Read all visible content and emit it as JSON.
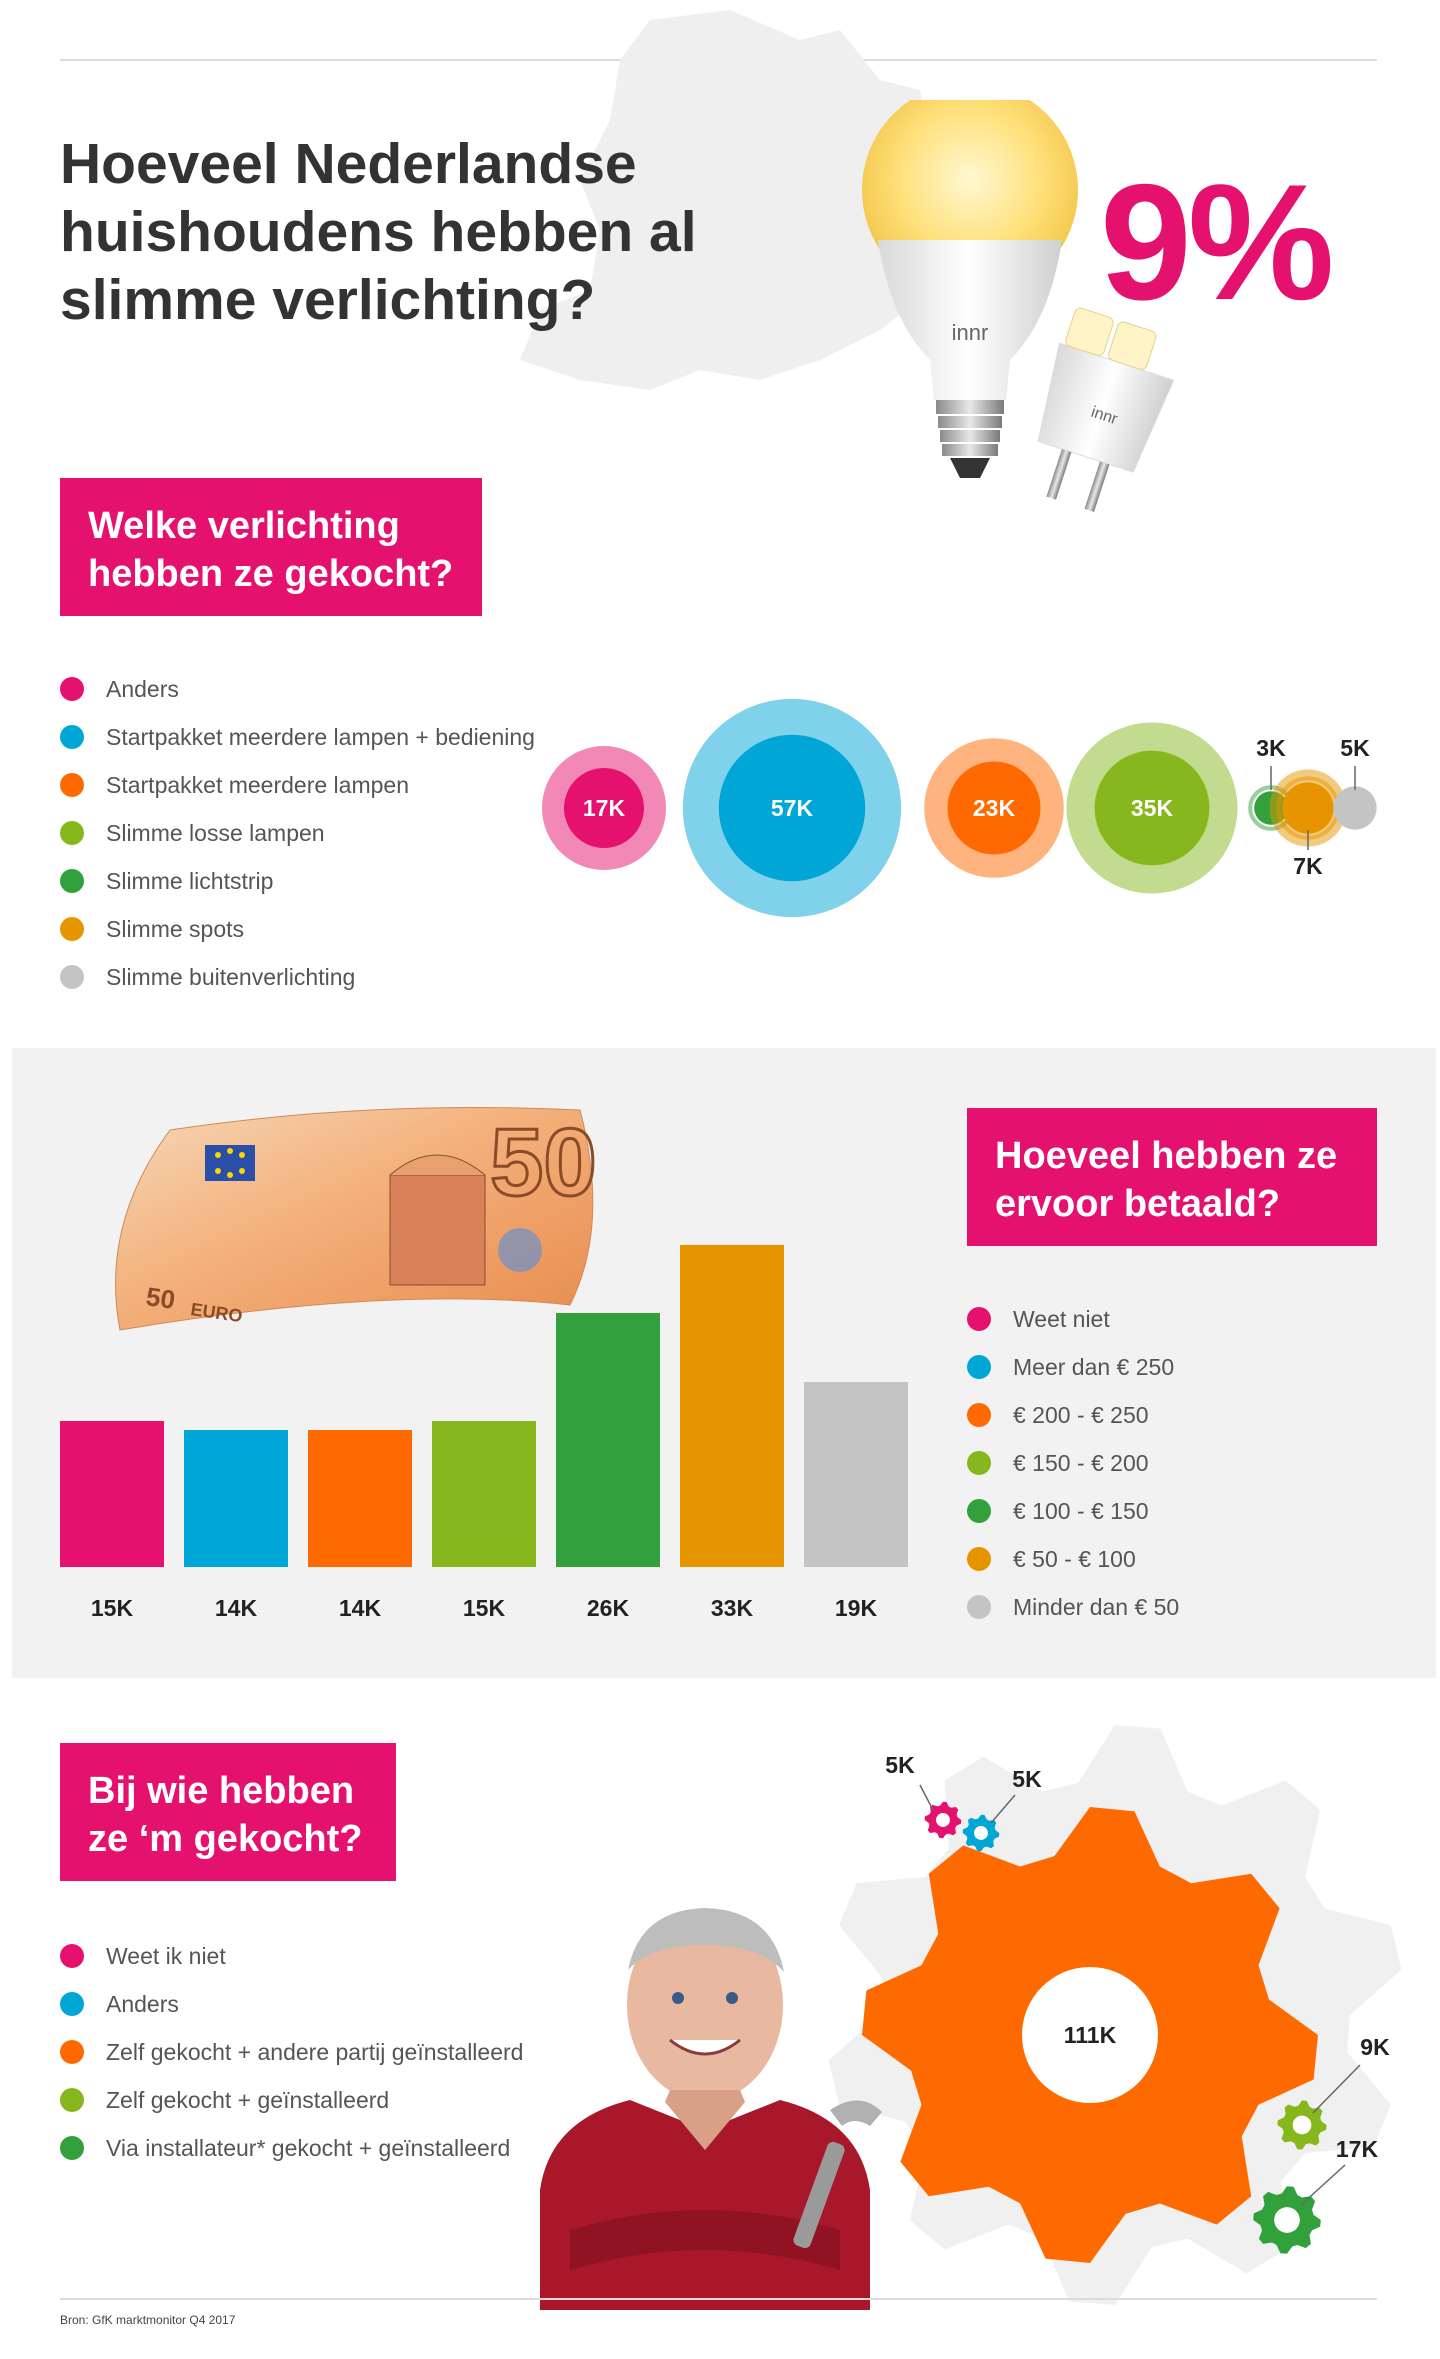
{
  "title": "Hoeveel Nederlandse huishoudens hebben al slimme verlichting?",
  "headline_percentage": "9%",
  "bulb_brand": "innr",
  "colors": {
    "pink": "#e5116e",
    "blue": "#00a6d6",
    "orange": "#ff6a00",
    "light_green": "#86b81d",
    "green": "#32a13b",
    "amber": "#e69500",
    "grey": "#c4c4c4"
  },
  "section1": {
    "heading": "Welke verlichting hebben ze gekocht?",
    "legend": [
      {
        "label": "Anders",
        "color": "#e5116e"
      },
      {
        "label": "Startpakket meerdere lampen + bediening",
        "color": "#00a6d6"
      },
      {
        "label": "Startpakket meerdere lampen",
        "color": "#ff6a00"
      },
      {
        "label": "Slimme losse lampen",
        "color": "#86b81d"
      },
      {
        "label": "Slimme lichtstrip",
        "color": "#32a13b"
      },
      {
        "label": "Slimme spots",
        "color": "#e69500"
      },
      {
        "label": "Slimme buitenverlichting",
        "color": "#c4c4c4"
      }
    ],
    "bubbles": [
      {
        "label": "17K",
        "value": 17,
        "color": "#e5116e"
      },
      {
        "label": "57K",
        "value": 57,
        "color": "#00a6d6"
      },
      {
        "label": "23K",
        "value": 23,
        "color": "#ff6a00"
      },
      {
        "label": "35K",
        "value": 35,
        "color": "#86b81d"
      },
      {
        "label": "3K",
        "value": 3,
        "color": "#32a13b"
      },
      {
        "label": "7K",
        "value": 7,
        "color": "#e69500"
      },
      {
        "label": "5K",
        "value": 5,
        "color": "#c4c4c4"
      }
    ]
  },
  "section2": {
    "heading": "Hoeveel hebben ze ervoor betaald?",
    "legend": [
      {
        "label": "Weet niet",
        "color": "#e5116e"
      },
      {
        "label": "Meer dan € 250",
        "color": "#00a6d6"
      },
      {
        "label": "€ 200 - € 250",
        "color": "#ff6a00"
      },
      {
        "label": "€ 150 - € 200",
        "color": "#86b81d"
      },
      {
        "label": "€ 100 - € 150",
        "color": "#32a13b"
      },
      {
        "label": "€ 50 - € 100",
        "color": "#e69500"
      },
      {
        "label": "Minder dan € 50",
        "color": "#c4c4c4"
      }
    ],
    "banknote": {
      "value": "50",
      "text": "EURO"
    }
  },
  "chart_data": {
    "type": "bar",
    "categories": [
      "Weet niet",
      "Meer dan € 250",
      "€ 200 - € 250",
      "€ 150 - € 200",
      "€ 100 - € 150",
      "€ 50 - € 100",
      "Minder dan € 50"
    ],
    "values": [
      15,
      14,
      14,
      15,
      26,
      33,
      19
    ],
    "labels": [
      "15K",
      "14K",
      "14K",
      "15K",
      "26K",
      "33K",
      "19K"
    ],
    "colors": [
      "#e5116e",
      "#00a6d6",
      "#ff6a00",
      "#86b81d",
      "#32a13b",
      "#e69500",
      "#c4c4c4"
    ],
    "ylim": [
      0,
      33
    ]
  },
  "section3": {
    "heading": "Bij wie hebben ze ‘m gekocht?",
    "legend": [
      {
        "label": "Weet ik niet",
        "color": "#e5116e"
      },
      {
        "label": "Anders",
        "color": "#00a6d6"
      },
      {
        "label": "Zelf gekocht + andere partij geïnstalleerd",
        "color": "#ff6a00"
      },
      {
        "label": "Zelf gekocht + geïnstalleerd",
        "color": "#86b81d"
      },
      {
        "label": "Via installateur* gekocht + geïnstalleerd",
        "color": "#32a13b"
      }
    ],
    "gears": [
      {
        "label": "5K",
        "value": 5,
        "color": "#e5116e"
      },
      {
        "label": "5K",
        "value": 5,
        "color": "#00a6d6"
      },
      {
        "label": "111K",
        "value": 111,
        "color": "#ff6a00"
      },
      {
        "label": "9K",
        "value": 9,
        "color": "#86b81d"
      },
      {
        "label": "17K",
        "value": 17,
        "color": "#32a13b"
      }
    ]
  },
  "source": "Bron: GfK marktmonitor Q4 2017"
}
